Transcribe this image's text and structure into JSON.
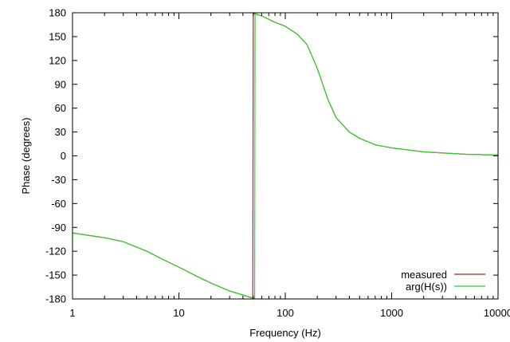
{
  "chart_data": {
    "type": "line",
    "title": "",
    "xlabel": "Frequency (Hz)",
    "ylabel": "Phase (degrees)",
    "xscale": "log",
    "xlim": [
      1,
      10000
    ],
    "ylim": [
      -180,
      180
    ],
    "grid": false,
    "legend_position": "bottom-right",
    "x_ticks": [
      {
        "value": 1,
        "label": "1"
      },
      {
        "value": 10,
        "label": "10"
      },
      {
        "value": 100,
        "label": "100"
      },
      {
        "value": 1000,
        "label": "1000"
      },
      {
        "value": 10000,
        "label": "10000"
      }
    ],
    "y_ticks": [
      {
        "value": 180,
        "label": "180"
      },
      {
        "value": 150,
        "label": "150"
      },
      {
        "value": 120,
        "label": "120"
      },
      {
        "value": 90,
        "label": "90"
      },
      {
        "value": 60,
        "label": "60"
      },
      {
        "value": 30,
        "label": "30"
      },
      {
        "value": 0,
        "label": "0"
      },
      {
        "value": -30,
        "label": "-30"
      },
      {
        "value": -60,
        "label": "-60"
      },
      {
        "value": -90,
        "label": "-90"
      },
      {
        "value": -120,
        "label": "-120"
      },
      {
        "value": -150,
        "label": "-150"
      },
      {
        "value": -180,
        "label": "-180"
      }
    ],
    "series": [
      {
        "name": "measured",
        "color": "#b22222",
        "x": [
          1,
          2,
          3,
          5,
          7,
          10,
          15,
          20,
          30,
          40,
          49.5,
          50,
          51,
          60,
          80,
          100,
          130,
          160,
          200,
          250,
          300,
          400,
          500,
          700,
          1000,
          2000,
          5000,
          10000
        ],
        "y": [
          -97,
          -103,
          -108,
          -120,
          -130,
          -140,
          -152,
          -160,
          -170,
          -175,
          -179,
          180,
          179,
          176,
          168,
          163,
          153,
          140,
          110,
          72,
          48,
          30,
          22,
          14,
          10,
          5,
          2,
          1
        ]
      },
      {
        "name": "arg(H(s))",
        "color": "#33cc33",
        "x": [
          1,
          2,
          3,
          5,
          7,
          10,
          15,
          20,
          30,
          40,
          50,
          51.5,
          52,
          60,
          80,
          100,
          130,
          160,
          200,
          250,
          300,
          400,
          500,
          700,
          1000,
          2000,
          5000,
          10000
        ],
        "y": [
          -97,
          -103,
          -108,
          -120,
          -130,
          -140,
          -152,
          -160,
          -170,
          -175,
          -179,
          -179,
          179,
          176,
          168,
          163,
          153,
          140,
          110,
          72,
          48,
          30,
          22,
          14,
          10,
          5,
          2,
          1
        ]
      }
    ]
  }
}
